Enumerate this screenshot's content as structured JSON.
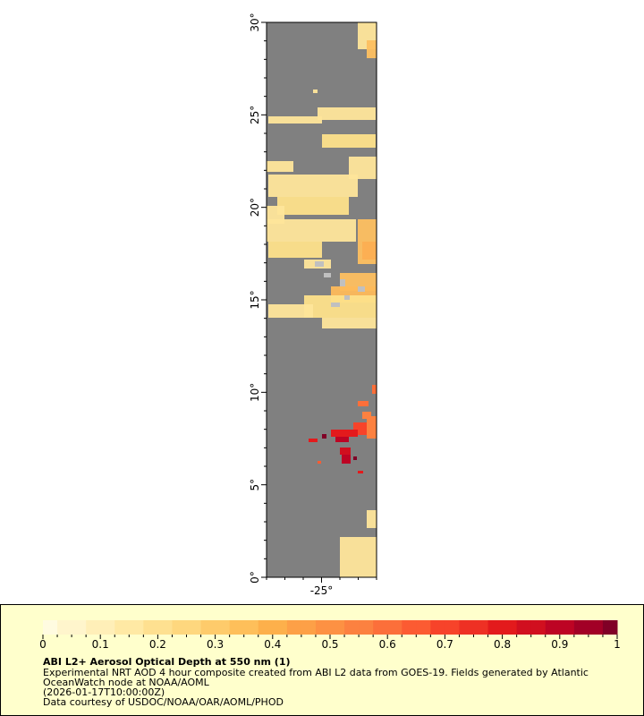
{
  "map": {
    "lat_range": [
      0,
      30
    ],
    "lon_range": [
      -28,
      -22
    ],
    "lat_ticks": [
      "0°",
      "5°",
      "10°",
      "15°",
      "20°",
      "25°",
      "30°"
    ],
    "lon_ticks": [
      "-25°"
    ],
    "land_or_nodata_color": "#808080",
    "cloud_mask_color": "#c0c0c0"
  },
  "legend": {
    "colorbar": {
      "min": 0,
      "max": 1,
      "tick_labels": [
        "0",
        "0.1",
        "0.2",
        "0.3",
        "0.4",
        "0.5",
        "0.6",
        "0.7",
        "0.8",
        "0.9",
        "1"
      ],
      "colors": [
        "#fffbe0",
        "#fff5cc",
        "#ffefb8",
        "#ffe9a4",
        "#fee090",
        "#fed77e",
        "#fecb6b",
        "#febf5a",
        "#fdb04b",
        "#fda047",
        "#fd9143",
        "#fc8140",
        "#fc6f3a",
        "#fc5b32",
        "#f7432a",
        "#ee3024",
        "#e31a1c",
        "#d10f1f",
        "#bd0424",
        "#a20026",
        "#800026"
      ]
    },
    "title": "ABI L2+ Aerosol Optical Depth at 550 nm (1)",
    "line1": "Experimental NRT AOD 4 hour composite created from ABI L2 data from GOES-19. Fields generated by Atlantic",
    "line2": "OceanWatch node at NOAA/AOML",
    "line3": "(2026-01-17T10:00:00Z)",
    "line4": "Data courtesy of USDOC/NOAA/OAR/AOML/PHOD"
  }
}
